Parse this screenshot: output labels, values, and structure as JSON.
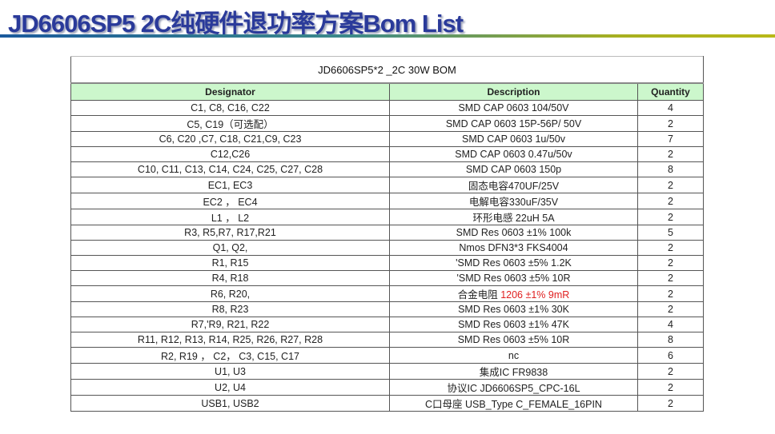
{
  "page_title": "JD6606SP5 2C纯硬件退功率方案Bom List",
  "bom_title": "JD6606SP5*2 _2C  30W BOM",
  "columns": [
    "Designator",
    "Description",
    "Quantity"
  ],
  "rows": [
    {
      "designator": "C1, C8, C16, C22",
      "description": "SMD CAP 0603 104/50V",
      "description_red": "",
      "quantity": "4"
    },
    {
      "designator": "C5, C19（可选配）",
      "description": "SMD CAP 0603  15P-56P/ 50V",
      "description_red": "",
      "quantity": "2"
    },
    {
      "designator": "C6, C20 ,C7, C18, C21,C9, C23",
      "description": "SMD CAP 0603  1u/50v",
      "description_red": "",
      "quantity": "7"
    },
    {
      "designator": "C12,C26",
      "description": "SMD CAP 0603 0.47u/50v",
      "description_red": "",
      "quantity": "2"
    },
    {
      "designator": "C10, C11, C13, C14, C24, C25, C27, C28",
      "description": "SMD CAP 0603  150p",
      "description_red": "",
      "quantity": "8"
    },
    {
      "designator": "EC1, EC3",
      "description": "固态电容470UF/25V",
      "description_red": "",
      "quantity": "2"
    },
    {
      "designator": "EC2 ， EC4",
      "description": "电解电容330uF/35V",
      "description_red": "",
      "quantity": "2"
    },
    {
      "designator": "L1 ， L2",
      "description": "环形电感 22uH  5A",
      "description_red": "",
      "quantity": "2"
    },
    {
      "designator": "R3, R5,R7, R17,R21",
      "description": "SMD Res 0603 ±1% 100k",
      "description_red": "",
      "quantity": "5"
    },
    {
      "designator": "Q1, Q2,",
      "description": "Nmos DFN3*3 FKS4004",
      "description_red": "",
      "quantity": "2"
    },
    {
      "designator": "R1, R15",
      "description": "'SMD Res 0603 ±5% 1.2K",
      "description_red": "",
      "quantity": "2"
    },
    {
      "designator": "R4, R18",
      "description": "'SMD Res 0603 ±5% 10R",
      "description_red": "",
      "quantity": "2"
    },
    {
      "designator": "R6, R20,",
      "description": "合金电阻 ",
      "description_red": "1206 ±1% 9mR",
      "quantity": "2"
    },
    {
      "designator": "R8, R23",
      "description": "SMD Res 0603 ±1% 30K",
      "description_red": "",
      "quantity": "2"
    },
    {
      "designator": "R7,'R9, R21, R22",
      "description": "SMD Res 0603 ±1% 47K",
      "description_red": "",
      "quantity": "4"
    },
    {
      "designator": "R11, R12, R13, R14, R25, R26, R27, R28",
      "description": "SMD Res 0603 ±5% 10R",
      "description_red": "",
      "quantity": "8"
    },
    {
      "designator": "R2, R19  ， C2， C3, C15, C17",
      "description": "nc",
      "description_red": "",
      "quantity": "6"
    },
    {
      "designator": "U1, U3",
      "description": "集成IC FR9838",
      "description_red": "",
      "quantity": "2"
    },
    {
      "designator": "U2, U4",
      "description": "协议IC JD6606SP5_CPC-16L",
      "description_red": "",
      "quantity": "2"
    },
    {
      "designator": "USB1, USB2",
      "description": "C口母座 USB_Type C_FEMALE_16PIN",
      "description_red": "",
      "quantity": "2"
    }
  ],
  "colors": {
    "title": "#2a3a9a",
    "header_bg": "#ccf7cc",
    "highlight": "#e02020"
  }
}
